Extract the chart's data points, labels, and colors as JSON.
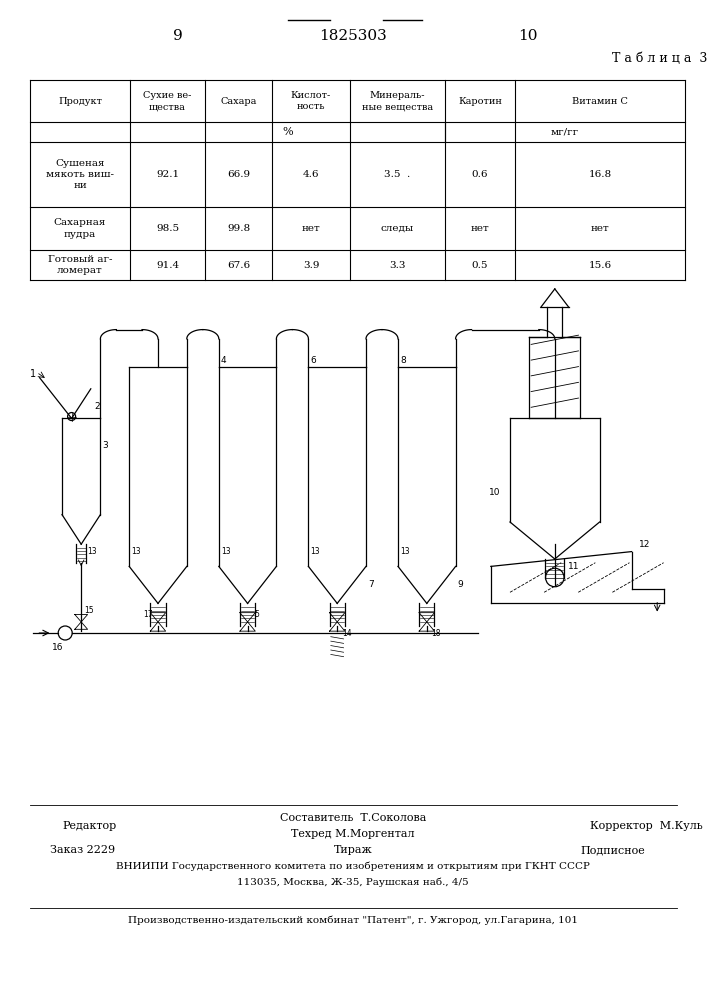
{
  "page_number_left": "9",
  "patent_number": "1825303",
  "page_number_right": "10",
  "table_title": "Т а б л и ц а  3",
  "table_headers": [
    "Продукт",
    "Сухие ве-\nщества",
    "Сахара",
    "Кислот-\nность",
    "Минераль-\nные вещества",
    "Каротин",
    "Витамин С"
  ],
  "table_data": [
    [
      "Сушеная\nмякоть виш-\nни",
      "92.1",
      "66.9",
      "4.6",
      "3.5  .",
      "0.6",
      "16.8"
    ],
    [
      "Сахарная\nпудра",
      "98.5",
      "99.8",
      "нет",
      "следы",
      "нет",
      "нет"
    ],
    [
      "Готовый аг-\nломерат",
      "91.4",
      "67.6",
      "3.9",
      "3.3",
      "0.5",
      "15.6"
    ]
  ],
  "footer_line1_left": "Редактор",
  "footer_line1_center1": "Составитель  Т.Соколова",
  "footer_line1_center2": "Техред М.Моргентал",
  "footer_line1_right": "Корректор  М.Куль",
  "footer_line2_left": "Заказ 2229",
  "footer_line2_center": "Тираж",
  "footer_line2_right": "Подписное",
  "footer_line3": "ВНИИПИ Государственного комитета по изобретениям и открытиям при ГКНТ СССР",
  "footer_line4": "113035, Москва, Ж-35, Раушская наб., 4/5",
  "footer_line5": "Производственно-издательский комбинат \"Патент\", г. Ужгород, ул.Гагарина, 101",
  "bg_color": "#ffffff",
  "text_color": "#000000"
}
